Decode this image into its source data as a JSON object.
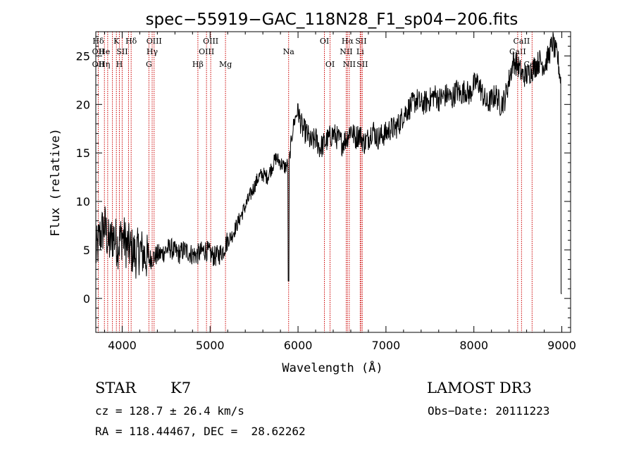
{
  "chart_data": {
    "type": "line",
    "title": "spec−55919−GAC_118N28_F1_sp04−206.fits",
    "xlabel": "Wavelength (Å)",
    "ylabel": "Flux (relative)",
    "xlim": [
      3700,
      9100
    ],
    "ylim": [
      -3.5,
      27.5
    ],
    "xticks": [
      4000,
      5000,
      6000,
      7000,
      8000,
      9000
    ],
    "yticks": [
      0,
      5,
      10,
      15,
      20,
      25
    ],
    "grid": false,
    "series_color": "#000000",
    "line_color": "#cc0000",
    "spectrum": {
      "x": [
        3700,
        3750,
        3800,
        3850,
        3900,
        3950,
        4000,
        4050,
        4100,
        4150,
        4200,
        4250,
        4300,
        4350,
        4400,
        4450,
        4500,
        4550,
        4600,
        4650,
        4700,
        4750,
        4800,
        4850,
        4900,
        4950,
        5000,
        5050,
        5100,
        5150,
        5200,
        5250,
        5300,
        5350,
        5400,
        5450,
        5500,
        5550,
        5600,
        5650,
        5700,
        5750,
        5800,
        5850,
        5900,
        5920,
        5950,
        6000,
        6020,
        6050,
        6100,
        6150,
        6200,
        6250,
        6300,
        6350,
        6400,
        6450,
        6500,
        6550,
        6600,
        6650,
        6700,
        6750,
        6800,
        6850,
        6900,
        6950,
        7000,
        7050,
        7100,
        7150,
        7200,
        7250,
        7300,
        7350,
        7400,
        7450,
        7500,
        7550,
        7600,
        7650,
        7700,
        7750,
        7800,
        7850,
        7900,
        7950,
        8000,
        8050,
        8100,
        8150,
        8200,
        8250,
        8300,
        8350,
        8400,
        8450,
        8500,
        8550,
        8600,
        8650,
        8700,
        8750,
        8800,
        8850,
        8900,
        8920,
        8950,
        8980,
        9000
      ],
      "y": [
        4.5,
        6.5,
        7.5,
        5.5,
        6.5,
        5.5,
        6.5,
        5.5,
        5.0,
        4.5,
        5.0,
        4.5,
        4.0,
        4.2,
        4.5,
        4.6,
        5.0,
        5.2,
        4.8,
        4.6,
        5.0,
        4.8,
        4.5,
        4.5,
        4.8,
        5.0,
        4.6,
        4.3,
        4.5,
        5.0,
        6.0,
        6.5,
        7.5,
        8.5,
        9.5,
        10.5,
        11.5,
        12.5,
        12.8,
        12.5,
        13.5,
        14.5,
        14.0,
        13.5,
        14.0,
        16.0,
        18.0,
        19.5,
        18.5,
        17.5,
        17.0,
        16.0,
        16.5,
        15.5,
        16.0,
        16.5,
        17.0,
        16.5,
        16.0,
        16.5,
        17.5,
        16.5,
        17.0,
        16.0,
        16.5,
        17.5,
        16.5,
        16.8,
        17.0,
        17.5,
        17.5,
        18.0,
        19.0,
        19.5,
        20.0,
        20.5,
        20.0,
        20.2,
        20.5,
        21.0,
        20.5,
        20.8,
        21.0,
        20.5,
        21.5,
        21.0,
        21.5,
        21.0,
        22.0,
        22.3,
        21.0,
        20.0,
        20.5,
        21.0,
        20.0,
        20.5,
        22.5,
        24.5,
        24.0,
        23.0,
        23.0,
        23.5,
        24.0,
        24.5,
        24.0,
        25.0,
        26.5,
        25.5,
        25.0,
        23.0,
        21.5
      ]
    },
    "lines": [
      {
        "x": 3728,
        "labels": [
          {
            "text": "Hδ",
            "row": 0
          },
          {
            "text": "OII",
            "row": 1
          },
          {
            "text": "OII",
            "row": 2
          }
        ]
      },
      {
        "x": 3798,
        "labels": [
          {
            "text": "He",
            "row": 1
          },
          {
            "text": "Hη",
            "row": 2
          }
        ]
      },
      {
        "x": 3835,
        "labels": []
      },
      {
        "x": 3889,
        "labels": []
      },
      {
        "x": 3934,
        "labels": [
          {
            "text": "K",
            "row": 0
          }
        ]
      },
      {
        "x": 3968,
        "labels": [
          {
            "text": "H",
            "row": 2
          }
        ]
      },
      {
        "x": 4000,
        "labels": [
          {
            "text": "SII",
            "row": 1
          }
        ]
      },
      {
        "x": 4072,
        "labels": []
      },
      {
        "x": 4102,
        "labels": [
          {
            "text": "Hδ",
            "row": 0
          }
        ]
      },
      {
        "x": 4304,
        "labels": [
          {
            "text": "G",
            "row": 2
          }
        ]
      },
      {
        "x": 4341,
        "labels": [
          {
            "text": "Hγ",
            "row": 1
          }
        ]
      },
      {
        "x": 4363,
        "labels": [
          {
            "text": "OIII",
            "row": 0
          }
        ]
      },
      {
        "x": 4861,
        "labels": [
          {
            "text": "Hβ",
            "row": 2
          }
        ]
      },
      {
        "x": 4959,
        "labels": [
          {
            "text": "OIII",
            "row": 1
          }
        ]
      },
      {
        "x": 5007,
        "labels": [
          {
            "text": "OIII",
            "row": 0
          }
        ]
      },
      {
        "x": 5175,
        "labels": [
          {
            "text": "Mg",
            "row": 2
          }
        ]
      },
      {
        "x": 5893,
        "labels": [
          {
            "text": "Na",
            "row": 1
          }
        ]
      },
      {
        "x": 6300,
        "labels": [
          {
            "text": "OI",
            "row": 0
          }
        ]
      },
      {
        "x": 6364,
        "labels": [
          {
            "text": "OI",
            "row": 2
          }
        ]
      },
      {
        "x": 6548,
        "labels": [
          {
            "text": "NII",
            "row": 1
          }
        ]
      },
      {
        "x": 6563,
        "labels": [
          {
            "text": "Hα",
            "row": 0
          }
        ]
      },
      {
        "x": 6583,
        "labels": [
          {
            "text": "NII",
            "row": 2
          }
        ]
      },
      {
        "x": 6707,
        "labels": [
          {
            "text": "Li",
            "row": 1
          }
        ]
      },
      {
        "x": 6716,
        "labels": [
          {
            "text": "SII",
            "row": 0
          }
        ]
      },
      {
        "x": 6731,
        "labels": [
          {
            "text": "SII",
            "row": 2
          }
        ]
      },
      {
        "x": 8498,
        "labels": [
          {
            "text": "CaII",
            "row": 1
          }
        ]
      },
      {
        "x": 8542,
        "labels": [
          {
            "text": "CaII",
            "row": 0
          }
        ]
      },
      {
        "x": 8662,
        "labels": [
          {
            "text": "CaII",
            "row": 2
          }
        ]
      }
    ]
  },
  "info": {
    "class": "STAR",
    "subclass": "K7",
    "survey": "LAMOST DR3",
    "cz": "cz = 128.7 ± 26.4 km/s",
    "obs_date": "Obs−Date: 20111223",
    "coords": "RA = 118.44467, DEC =  28.62262"
  }
}
